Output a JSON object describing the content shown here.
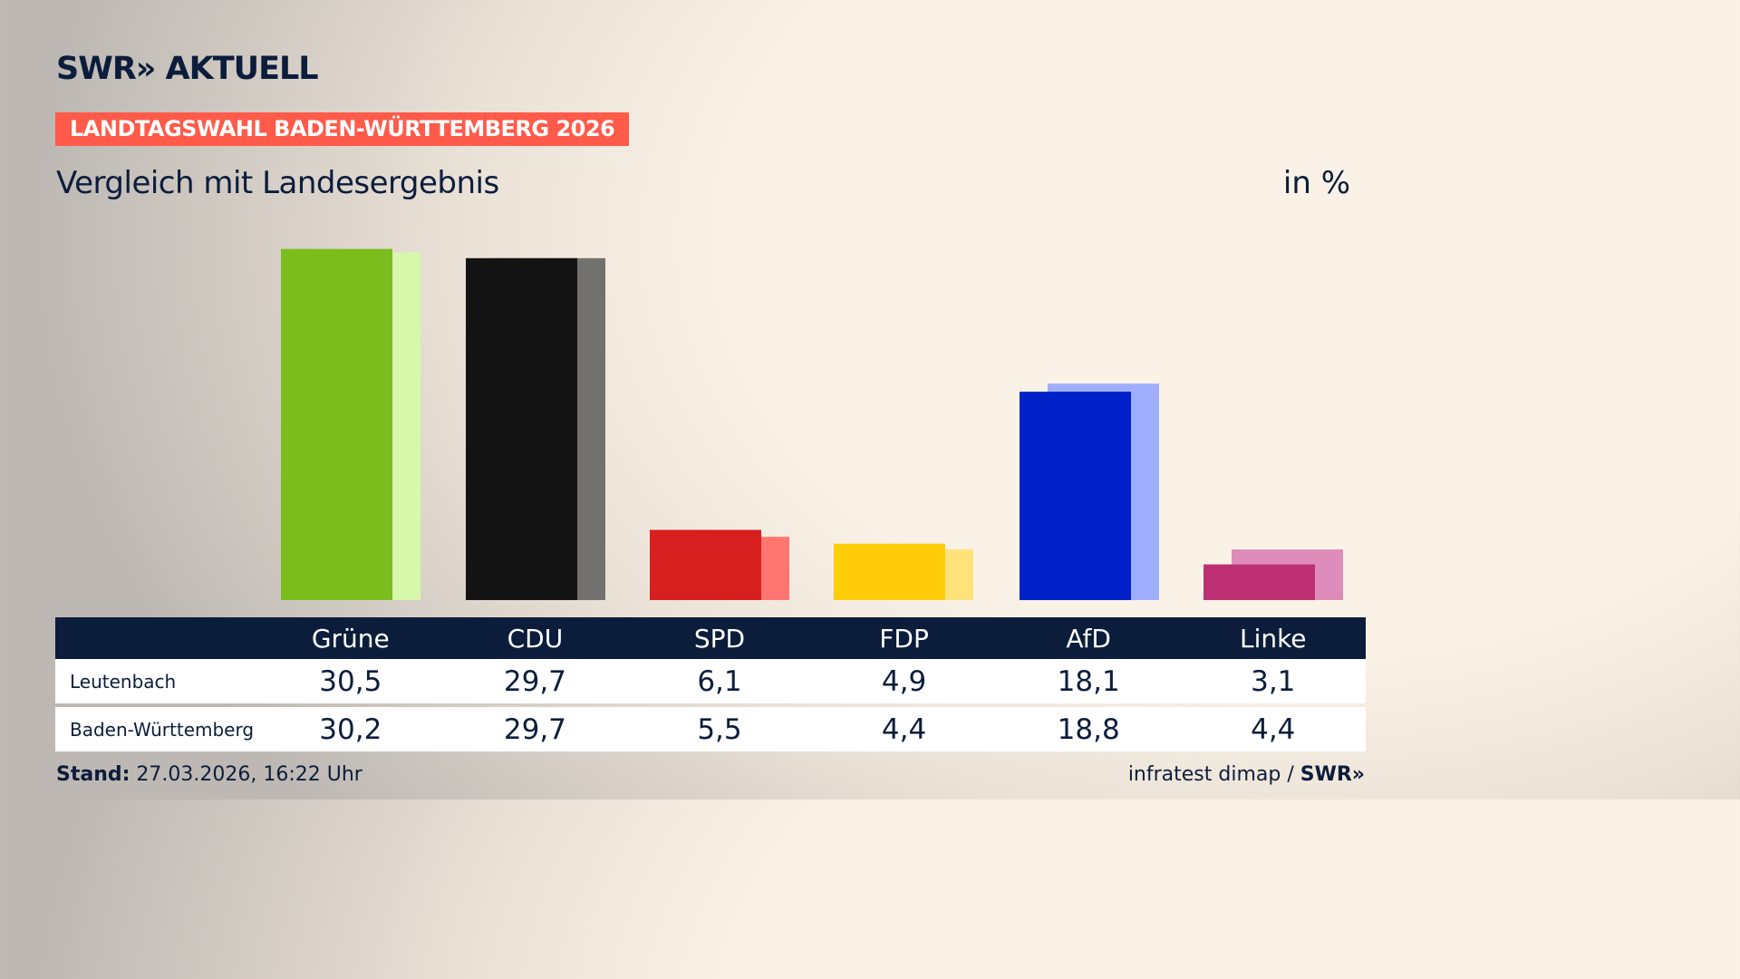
{
  "logo": "SWR» AKTUELL",
  "badge": "LANDTAGSWAHL BADEN-WÜRTTEMBERG 2026",
  "subtitle": "Vergleich mit Landesergebnis",
  "unit": "in %",
  "chart_data": {
    "type": "bar",
    "categories": [
      "Grüne",
      "CDU",
      "SPD",
      "FDP",
      "AfD",
      "Linke"
    ],
    "series": [
      {
        "name": "Leutenbach",
        "values": [
          30.5,
          29.7,
          6.1,
          4.9,
          18.1,
          3.1
        ],
        "colors": [
          "#7abd1c",
          "#131313",
          "#d71f1f",
          "#ffcd0a",
          "#0020c8",
          "#bd3074"
        ]
      },
      {
        "name": "Baden-Württemberg",
        "values": [
          30.2,
          29.7,
          5.5,
          4.4,
          18.8,
          4.4
        ],
        "colors": [
          "#d7f7ab",
          "#737170",
          "#ff7570",
          "#ffe27a",
          "#9fadff",
          "#de8cba"
        ]
      }
    ],
    "ylim": [
      0,
      31
    ],
    "grid": false,
    "display_values": {
      "Leutenbach": [
        "30,5",
        "29,7",
        "6,1",
        "4,9",
        "18,1",
        "3,1"
      ],
      "Baden-Württemberg": [
        "30,2",
        "29,7",
        "5,5",
        "4,4",
        "18,8",
        "4,4"
      ]
    }
  },
  "footer": {
    "stand_label": "Stand:",
    "stand_value": " 27.03.2026, 16:22 Uhr",
    "source": "infratest dimap / ",
    "source_logo": "SWR»"
  }
}
